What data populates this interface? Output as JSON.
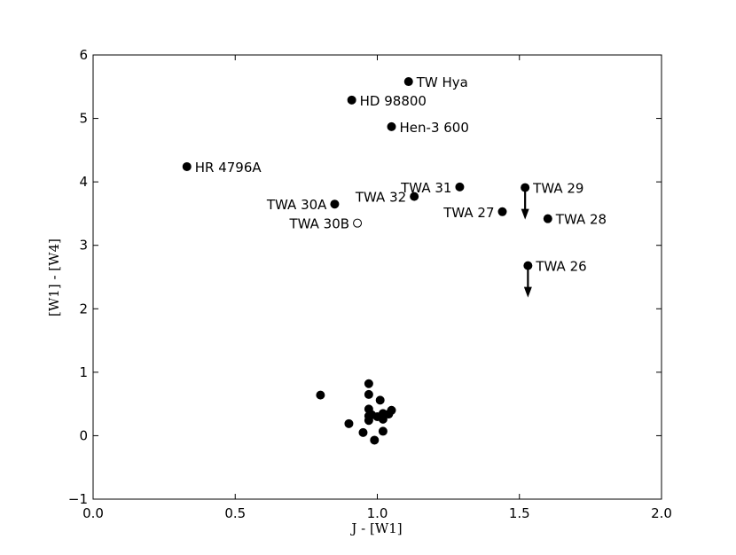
{
  "chart_data": {
    "type": "scatter",
    "title": "",
    "xlabel": "J - [W1]",
    "ylabel": "[W1] - [W4]",
    "xlim": [
      0.0,
      2.0
    ],
    "ylim": [
      -1,
      6
    ],
    "xticks": [
      0.0,
      0.5,
      1.0,
      1.5,
      2.0
    ],
    "xtick_labels": [
      "0.0",
      "0.5",
      "1.0",
      "1.5",
      "2.0"
    ],
    "yticks": [
      -1,
      0,
      1,
      2,
      3,
      4,
      5,
      6
    ],
    "ytick_labels": [
      "−1",
      "0",
      "1",
      "2",
      "3",
      "4",
      "5",
      "6"
    ],
    "grid": false,
    "labeled_points": [
      {
        "label": "TW Hya",
        "x": 1.11,
        "y": 5.58,
        "filled": true,
        "upper_limit": false,
        "label_side": "right"
      },
      {
        "label": "HD 98800",
        "x": 0.91,
        "y": 5.29,
        "filled": true,
        "upper_limit": false,
        "label_side": "right"
      },
      {
        "label": "Hen-3 600",
        "x": 1.05,
        "y": 4.87,
        "filled": true,
        "upper_limit": false,
        "label_side": "right"
      },
      {
        "label": "HR 4796A",
        "x": 0.33,
        "y": 4.24,
        "filled": true,
        "upper_limit": false,
        "label_side": "right"
      },
      {
        "label": "TWA 31",
        "x": 1.29,
        "y": 3.92,
        "filled": true,
        "upper_limit": false,
        "label_side": "left"
      },
      {
        "label": "TWA 32",
        "x": 1.13,
        "y": 3.77,
        "filled": true,
        "upper_limit": false,
        "label_side": "left"
      },
      {
        "label": "TWA 30A",
        "x": 0.85,
        "y": 3.65,
        "filled": true,
        "upper_limit": false,
        "label_side": "left"
      },
      {
        "label": "TWA 30B",
        "x": 0.93,
        "y": 3.35,
        "filled": false,
        "upper_limit": false,
        "label_side": "left"
      },
      {
        "label": "TWA 29",
        "x": 1.52,
        "y": 3.91,
        "filled": true,
        "upper_limit": true,
        "label_side": "right"
      },
      {
        "label": "TWA 27",
        "x": 1.44,
        "y": 3.53,
        "filled": true,
        "upper_limit": false,
        "label_side": "left"
      },
      {
        "label": "TWA 28",
        "x": 1.6,
        "y": 3.42,
        "filled": true,
        "upper_limit": false,
        "label_side": "right"
      },
      {
        "label": "TWA 26",
        "x": 1.53,
        "y": 2.68,
        "filled": true,
        "upper_limit": true,
        "label_side": "right"
      }
    ],
    "unlabeled_points": [
      {
        "x": 0.8,
        "y": 0.64
      },
      {
        "x": 0.9,
        "y": 0.19
      },
      {
        "x": 0.95,
        "y": 0.05
      },
      {
        "x": 0.97,
        "y": 0.82
      },
      {
        "x": 0.97,
        "y": 0.65
      },
      {
        "x": 0.97,
        "y": 0.42
      },
      {
        "x": 0.97,
        "y": 0.31
      },
      {
        "x": 0.97,
        "y": 0.24
      },
      {
        "x": 0.98,
        "y": 0.33
      },
      {
        "x": 0.99,
        "y": -0.07
      },
      {
        "x": 1.0,
        "y": 0.3
      },
      {
        "x": 1.01,
        "y": 0.56
      },
      {
        "x": 1.02,
        "y": 0.35
      },
      {
        "x": 1.02,
        "y": 0.26
      },
      {
        "x": 1.02,
        "y": 0.07
      },
      {
        "x": 1.04,
        "y": 0.34
      },
      {
        "x": 1.05,
        "y": 0.4
      }
    ]
  }
}
